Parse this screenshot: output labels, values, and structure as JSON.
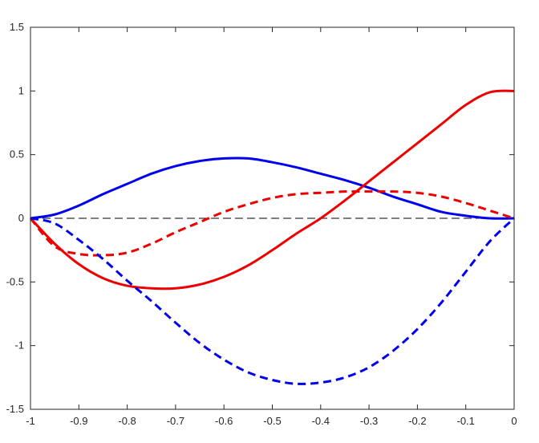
{
  "chart_data": {
    "type": "line",
    "title": "",
    "xlabel": "",
    "ylabel": "",
    "xlim": [
      -1,
      0
    ],
    "ylim": [
      -1.5,
      1.5
    ],
    "grid": false,
    "legend": "none",
    "xticks": [
      -1,
      -0.9,
      -0.8,
      -0.7,
      -0.6,
      -0.5,
      -0.4,
      -0.3,
      -0.2,
      -0.1,
      0
    ],
    "xtick_labels": [
      "-1",
      "-0.9",
      "-0.8",
      "-0.7",
      "-0.6",
      "-0.5",
      "-0.4",
      "-0.3",
      "-0.2",
      "-0.1",
      "0"
    ],
    "yticks": [
      -1.5,
      -1,
      -0.5,
      0,
      0.5,
      1,
      1.5
    ],
    "ytick_labels": [
      "-1.5",
      "-1",
      "-0.5",
      "0",
      "0.5",
      "1",
      "1.5"
    ],
    "x": [
      -1.0,
      -0.95,
      -0.9,
      -0.85,
      -0.8,
      -0.75,
      -0.7,
      -0.65,
      -0.6,
      -0.55,
      -0.5,
      -0.45,
      -0.4,
      -0.35,
      -0.3,
      -0.25,
      -0.2,
      -0.15,
      -0.1,
      -0.05,
      0.0
    ],
    "series": [
      {
        "color": "#0000ee",
        "dash": "solid",
        "values": [
          0.0,
          0.03,
          0.1,
          0.19,
          0.27,
          0.35,
          0.41,
          0.45,
          0.47,
          0.47,
          0.44,
          0.4,
          0.35,
          0.3,
          0.24,
          0.17,
          0.11,
          0.05,
          0.02,
          0.0,
          0.0
        ]
      },
      {
        "color": "#ee0000",
        "dash": "solid",
        "values": [
          0.0,
          -0.2,
          -0.36,
          -0.47,
          -0.53,
          -0.55,
          -0.55,
          -0.52,
          -0.46,
          -0.37,
          -0.25,
          -0.12,
          0.0,
          0.14,
          0.29,
          0.44,
          0.59,
          0.74,
          0.89,
          0.99,
          1.0
        ]
      },
      {
        "color": "#ee0000",
        "dash": "dashed",
        "values": [
          0.0,
          -0.22,
          -0.28,
          -0.29,
          -0.27,
          -0.2,
          -0.11,
          -0.03,
          0.05,
          0.11,
          0.16,
          0.19,
          0.2,
          0.21,
          0.21,
          0.21,
          0.2,
          0.17,
          0.12,
          0.06,
          0.0
        ]
      },
      {
        "color": "#0000ee",
        "dash": "dashed",
        "values": [
          0.0,
          -0.04,
          -0.17,
          -0.32,
          -0.49,
          -0.65,
          -0.82,
          -0.98,
          -1.11,
          -1.21,
          -1.27,
          -1.3,
          -1.29,
          -1.25,
          -1.17,
          -1.04,
          -0.87,
          -0.66,
          -0.42,
          -0.18,
          0.0
        ]
      },
      {
        "color": "#000000",
        "dash": "thin-dashed",
        "values": [
          0,
          0,
          0,
          0,
          0,
          0,
          0,
          0,
          0,
          0,
          0,
          0,
          0,
          0,
          0,
          0,
          0,
          0,
          0,
          0,
          0
        ]
      }
    ]
  }
}
